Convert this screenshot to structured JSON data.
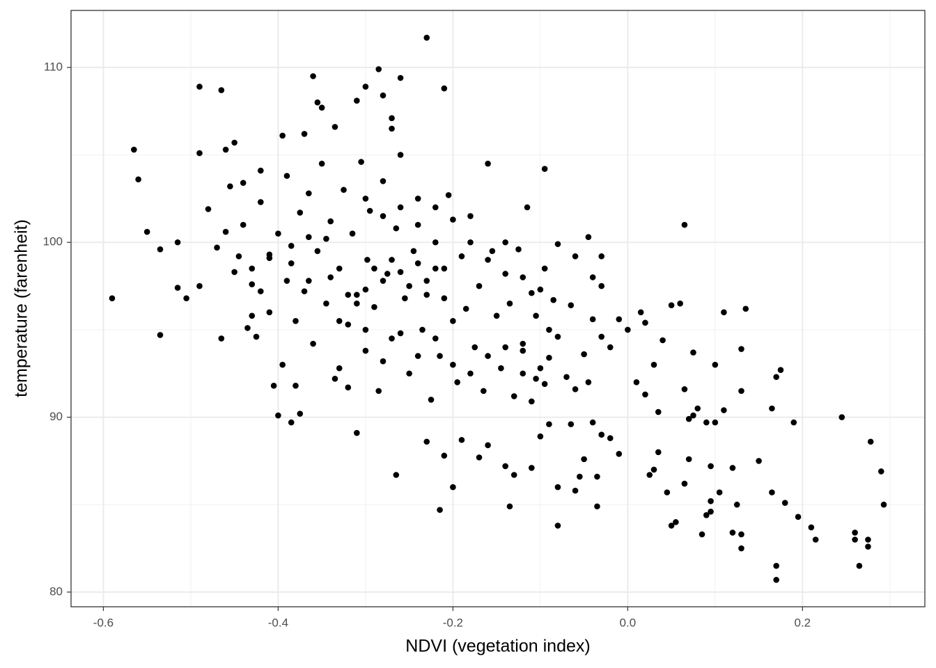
{
  "chart_data": {
    "type": "scatter",
    "x_label": "NDVI (vegetation index)",
    "y_label": "temperature (farenheit)",
    "color": "#000000",
    "grid": true,
    "xlim": [
      -0.637,
      0.34
    ],
    "ylim": [
      79.16,
      113.26
    ],
    "xticks": [
      -0.6,
      -0.4,
      -0.2,
      {
        "value": 0,
        "label": "0.0"
      },
      0.2
    ],
    "yticks": [
      80,
      90,
      100,
      110
    ],
    "x_minor_grid": [
      -0.5,
      -0.3,
      -0.1,
      0.1,
      0.3
    ],
    "y_minor_grid": [
      85,
      95,
      105
    ],
    "x": [
      -0.59,
      -0.565,
      -0.56,
      -0.55,
      -0.535,
      -0.535,
      -0.515,
      -0.515,
      -0.505,
      -0.49,
      -0.49,
      -0.49,
      -0.465,
      -0.465,
      -0.48,
      -0.47,
      -0.46,
      -0.46,
      -0.455,
      -0.45,
      -0.445,
      -0.44,
      -0.435,
      -0.43,
      -0.425,
      -0.42,
      -0.41,
      -0.405,
      -0.4,
      -0.395,
      -0.39,
      -0.385,
      -0.38,
      -0.375,
      -0.37,
      -0.365,
      -0.36,
      -0.355,
      -0.35,
      -0.34,
      -0.335,
      -0.33,
      -0.32,
      -0.31,
      -0.3,
      -0.285,
      -0.28,
      -0.27,
      -0.27,
      -0.26,
      -0.23,
      -0.21,
      -0.265,
      -0.31,
      -0.215,
      -0.2,
      -0.21,
      -0.23,
      -0.19,
      -0.17,
      -0.16,
      -0.14,
      -0.135,
      -0.13,
      -0.11,
      -0.1,
      -0.09,
      -0.08,
      -0.08,
      -0.065,
      -0.06,
      -0.055,
      -0.05,
      -0.04,
      -0.035,
      -0.035,
      -0.03,
      -0.02,
      -0.01,
      0.025,
      0.03,
      0.035,
      0.045,
      0.05,
      0.055,
      0.065,
      0.07,
      0.065,
      0.05,
      0.06,
      0.085,
      0.09,
      0.095,
      0.095,
      0.095,
      0.1,
      0.105,
      0.11,
      0.11,
      0.12,
      0.12,
      0.125,
      0.13,
      0.13,
      0.13,
      0.13,
      0.135,
      0.15,
      0.165,
      0.165,
      0.17,
      0.17,
      0.17,
      0.175,
      0.18,
      0.19,
      0.195,
      0.21,
      0.215,
      0.245,
      0.26,
      0.26,
      0.265,
      0.275,
      0.275,
      0.278,
      0.29,
      0.293,
      0.0,
      0.015,
      0.02,
      0.04,
      0.03,
      0.02,
      0.01,
      0.035,
      0.075,
      0.075,
      0.08,
      0.065,
      0.09,
      0.1,
      0.07,
      -0.01,
      -0.02,
      -0.03,
      -0.04,
      -0.045,
      -0.05,
      -0.06,
      -0.065,
      -0.07,
      -0.08,
      -0.085,
      -0.09,
      -0.095,
      -0.1,
      -0.1,
      -0.105,
      -0.11,
      -0.12,
      -0.045,
      -0.03,
      -0.06,
      -0.08,
      -0.03,
      -0.04,
      -0.44,
      -0.43,
      -0.42,
      -0.41,
      -0.4,
      -0.395,
      -0.39,
      -0.385,
      -0.38,
      -0.375,
      -0.37,
      -0.365,
      -0.36,
      -0.355,
      -0.35,
      -0.345,
      -0.34,
      -0.335,
      -0.33,
      -0.325,
      -0.32,
      -0.315,
      -0.31,
      -0.305,
      -0.3,
      -0.298,
      -0.295,
      -0.29,
      -0.285,
      -0.28,
      -0.275,
      -0.27,
      -0.265,
      -0.26,
      -0.255,
      -0.25,
      -0.245,
      -0.24,
      -0.235,
      -0.23,
      -0.225,
      -0.22,
      -0.215,
      -0.21,
      -0.205,
      -0.2,
      -0.195,
      -0.19,
      -0.185,
      -0.18,
      -0.175,
      -0.17,
      -0.165,
      -0.16,
      -0.155,
      -0.15,
      -0.145,
      -0.14,
      -0.135,
      -0.13,
      -0.125,
      -0.12,
      -0.115,
      -0.11,
      -0.105,
      -0.095,
      -0.095,
      -0.09,
      -0.32,
      -0.31,
      -0.3,
      -0.29,
      -0.28,
      -0.27,
      -0.26,
      -0.25,
      -0.24,
      -0.23,
      -0.22,
      -0.21,
      -0.33,
      -0.345,
      -0.365,
      -0.385,
      -0.41,
      -0.42,
      -0.43,
      -0.45,
      -0.3,
      -0.28,
      -0.26,
      -0.24,
      -0.22,
      -0.2,
      -0.18,
      -0.16,
      -0.14,
      -0.12,
      -0.3,
      -0.28,
      -0.26,
      -0.24,
      -0.22,
      -0.2,
      -0.18,
      -0.16,
      -0.14,
      -0.12
    ],
    "y": [
      96.8,
      105.3,
      103.6,
      100.6,
      99.6,
      94.7,
      100.0,
      97.4,
      96.8,
      108.9,
      105.1,
      97.5,
      108.7,
      94.5,
      101.9,
      99.7,
      105.3,
      100.6,
      103.2,
      105.7,
      99.2,
      103.4,
      95.1,
      97.6,
      94.6,
      104.1,
      99.1,
      91.8,
      90.1,
      106.1,
      97.8,
      89.7,
      91.8,
      90.2,
      106.2,
      100.3,
      109.5,
      108.0,
      107.7,
      98.0,
      106.6,
      92.8,
      91.7,
      108.1,
      108.9,
      109.9,
      108.4,
      107.1,
      106.5,
      109.4,
      111.7,
      108.8,
      86.7,
      89.1,
      84.7,
      86.0,
      87.8,
      88.6,
      88.7,
      87.7,
      88.4,
      87.2,
      84.9,
      86.7,
      87.1,
      88.9,
      89.6,
      86.0,
      83.8,
      89.6,
      85.8,
      86.6,
      87.6,
      89.7,
      86.6,
      84.9,
      89.0,
      88.8,
      87.9,
      86.7,
      87.0,
      88.0,
      85.7,
      83.8,
      84.0,
      86.2,
      87.6,
      101.0,
      96.4,
      96.5,
      83.3,
      84.4,
      84.6,
      85.2,
      87.2,
      89.7,
      85.7,
      90.4,
      96.0,
      83.4,
      87.1,
      85.0,
      82.5,
      83.3,
      91.5,
      93.9,
      96.2,
      87.5,
      90.5,
      85.7,
      92.3,
      81.5,
      80.7,
      92.7,
      85.1,
      89.7,
      84.3,
      83.7,
      83.0,
      90.0,
      83.4,
      83.0,
      81.5,
      82.6,
      83.0,
      88.6,
      86.9,
      85.0,
      95.0,
      96.0,
      95.4,
      94.4,
      93.0,
      91.3,
      92.0,
      90.3,
      93.7,
      90.1,
      90.5,
      91.6,
      89.7,
      93.0,
      89.9,
      95.6,
      94.0,
      94.6,
      95.6,
      92.0,
      93.6,
      91.6,
      96.4,
      92.3,
      94.6,
      96.7,
      93.4,
      91.9,
      97.3,
      92.8,
      95.8,
      90.9,
      93.8,
      100.3,
      99.2,
      99.2,
      99.9,
      97.5,
      98.0,
      101,
      98.5,
      102.3,
      96,
      100.5,
      93,
      103.8,
      98.8,
      95.5,
      101.7,
      97.2,
      102.8,
      94.2,
      99.5,
      104.5,
      96.5,
      101.2,
      92.2,
      98.5,
      103,
      95.3,
      100.5,
      97,
      104.6,
      93.8,
      99,
      101.8,
      96.3,
      91.5,
      103.5,
      98.2,
      94.5,
      100.8,
      105,
      96.8,
      92.5,
      99.5,
      102.5,
      95,
      97.8,
      91,
      100,
      93.5,
      98.5,
      102.7,
      95.5,
      92,
      99.2,
      96.2,
      101.5,
      94,
      97.5,
      91.5,
      104.5,
      99.5,
      95.8,
      92.8,
      98.2,
      96.5,
      91.2,
      99.6,
      94.2,
      102,
      97.1,
      92.2,
      104.2,
      98.5,
      95,
      97,
      96.5,
      97.3,
      98.5,
      97.8,
      99,
      98.3,
      97.5,
      98.8,
      97,
      98.5,
      96.8,
      95.5,
      100.2,
      97.8,
      99.8,
      99.3,
      97.2,
      95.8,
      98.3,
      95,
      93.2,
      94.8,
      93.5,
      94.5,
      93,
      92.5,
      93.5,
      94,
      92.5,
      102.5,
      101.5,
      102,
      101,
      102,
      101.3,
      100,
      99,
      100,
      98
    ]
  }
}
